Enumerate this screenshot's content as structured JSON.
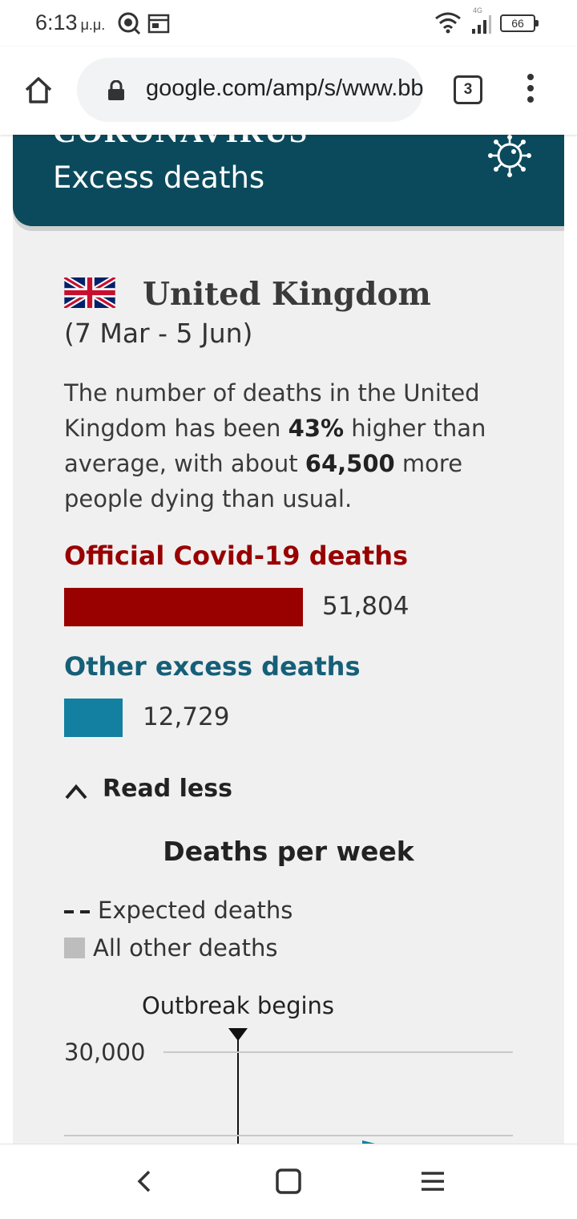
{
  "status_bar": {
    "time": "6:13",
    "ampm": "μ.μ.",
    "network": "4G",
    "battery": "66"
  },
  "browser": {
    "url": "google.com/amp/s/www.bbc.com",
    "tab_count": "3"
  },
  "banner": {
    "kicker": "CORONAVIRUS",
    "title": "Excess deaths"
  },
  "country": {
    "name": "United Kingdom",
    "date_range": "(7 Mar - 5 Jun)"
  },
  "summary": {
    "pre": "The number of deaths in the United Kingdom has been ",
    "pct": "43%",
    "mid": " higher than average, with about ",
    "count": "64,500",
    "post": " more people dying than usual."
  },
  "official": {
    "label": "Official Covid-19 deaths",
    "value": "51,804",
    "color": "#990000"
  },
  "other": {
    "label": "Other excess deaths",
    "value": "12,729",
    "color": "#1380a1"
  },
  "read_less": {
    "label": "Read less"
  },
  "chart": {
    "title": "Deaths per week",
    "legend_expected": "Expected deaths",
    "legend_other": "All other deaths",
    "annotation": "Outbreak begins"
  },
  "chart_data": {
    "type": "bar",
    "title": "Deaths per week",
    "series": [
      {
        "name": "Expected deaths",
        "values": []
      },
      {
        "name": "All other deaths",
        "values": []
      }
    ],
    "ytick_labels": [
      "30,000"
    ],
    "annotations": [
      "Outbreak begins"
    ],
    "grid": true
  },
  "nav": {
    "icons": [
      "back-icon",
      "home-square-icon",
      "recent-apps-icon"
    ]
  }
}
